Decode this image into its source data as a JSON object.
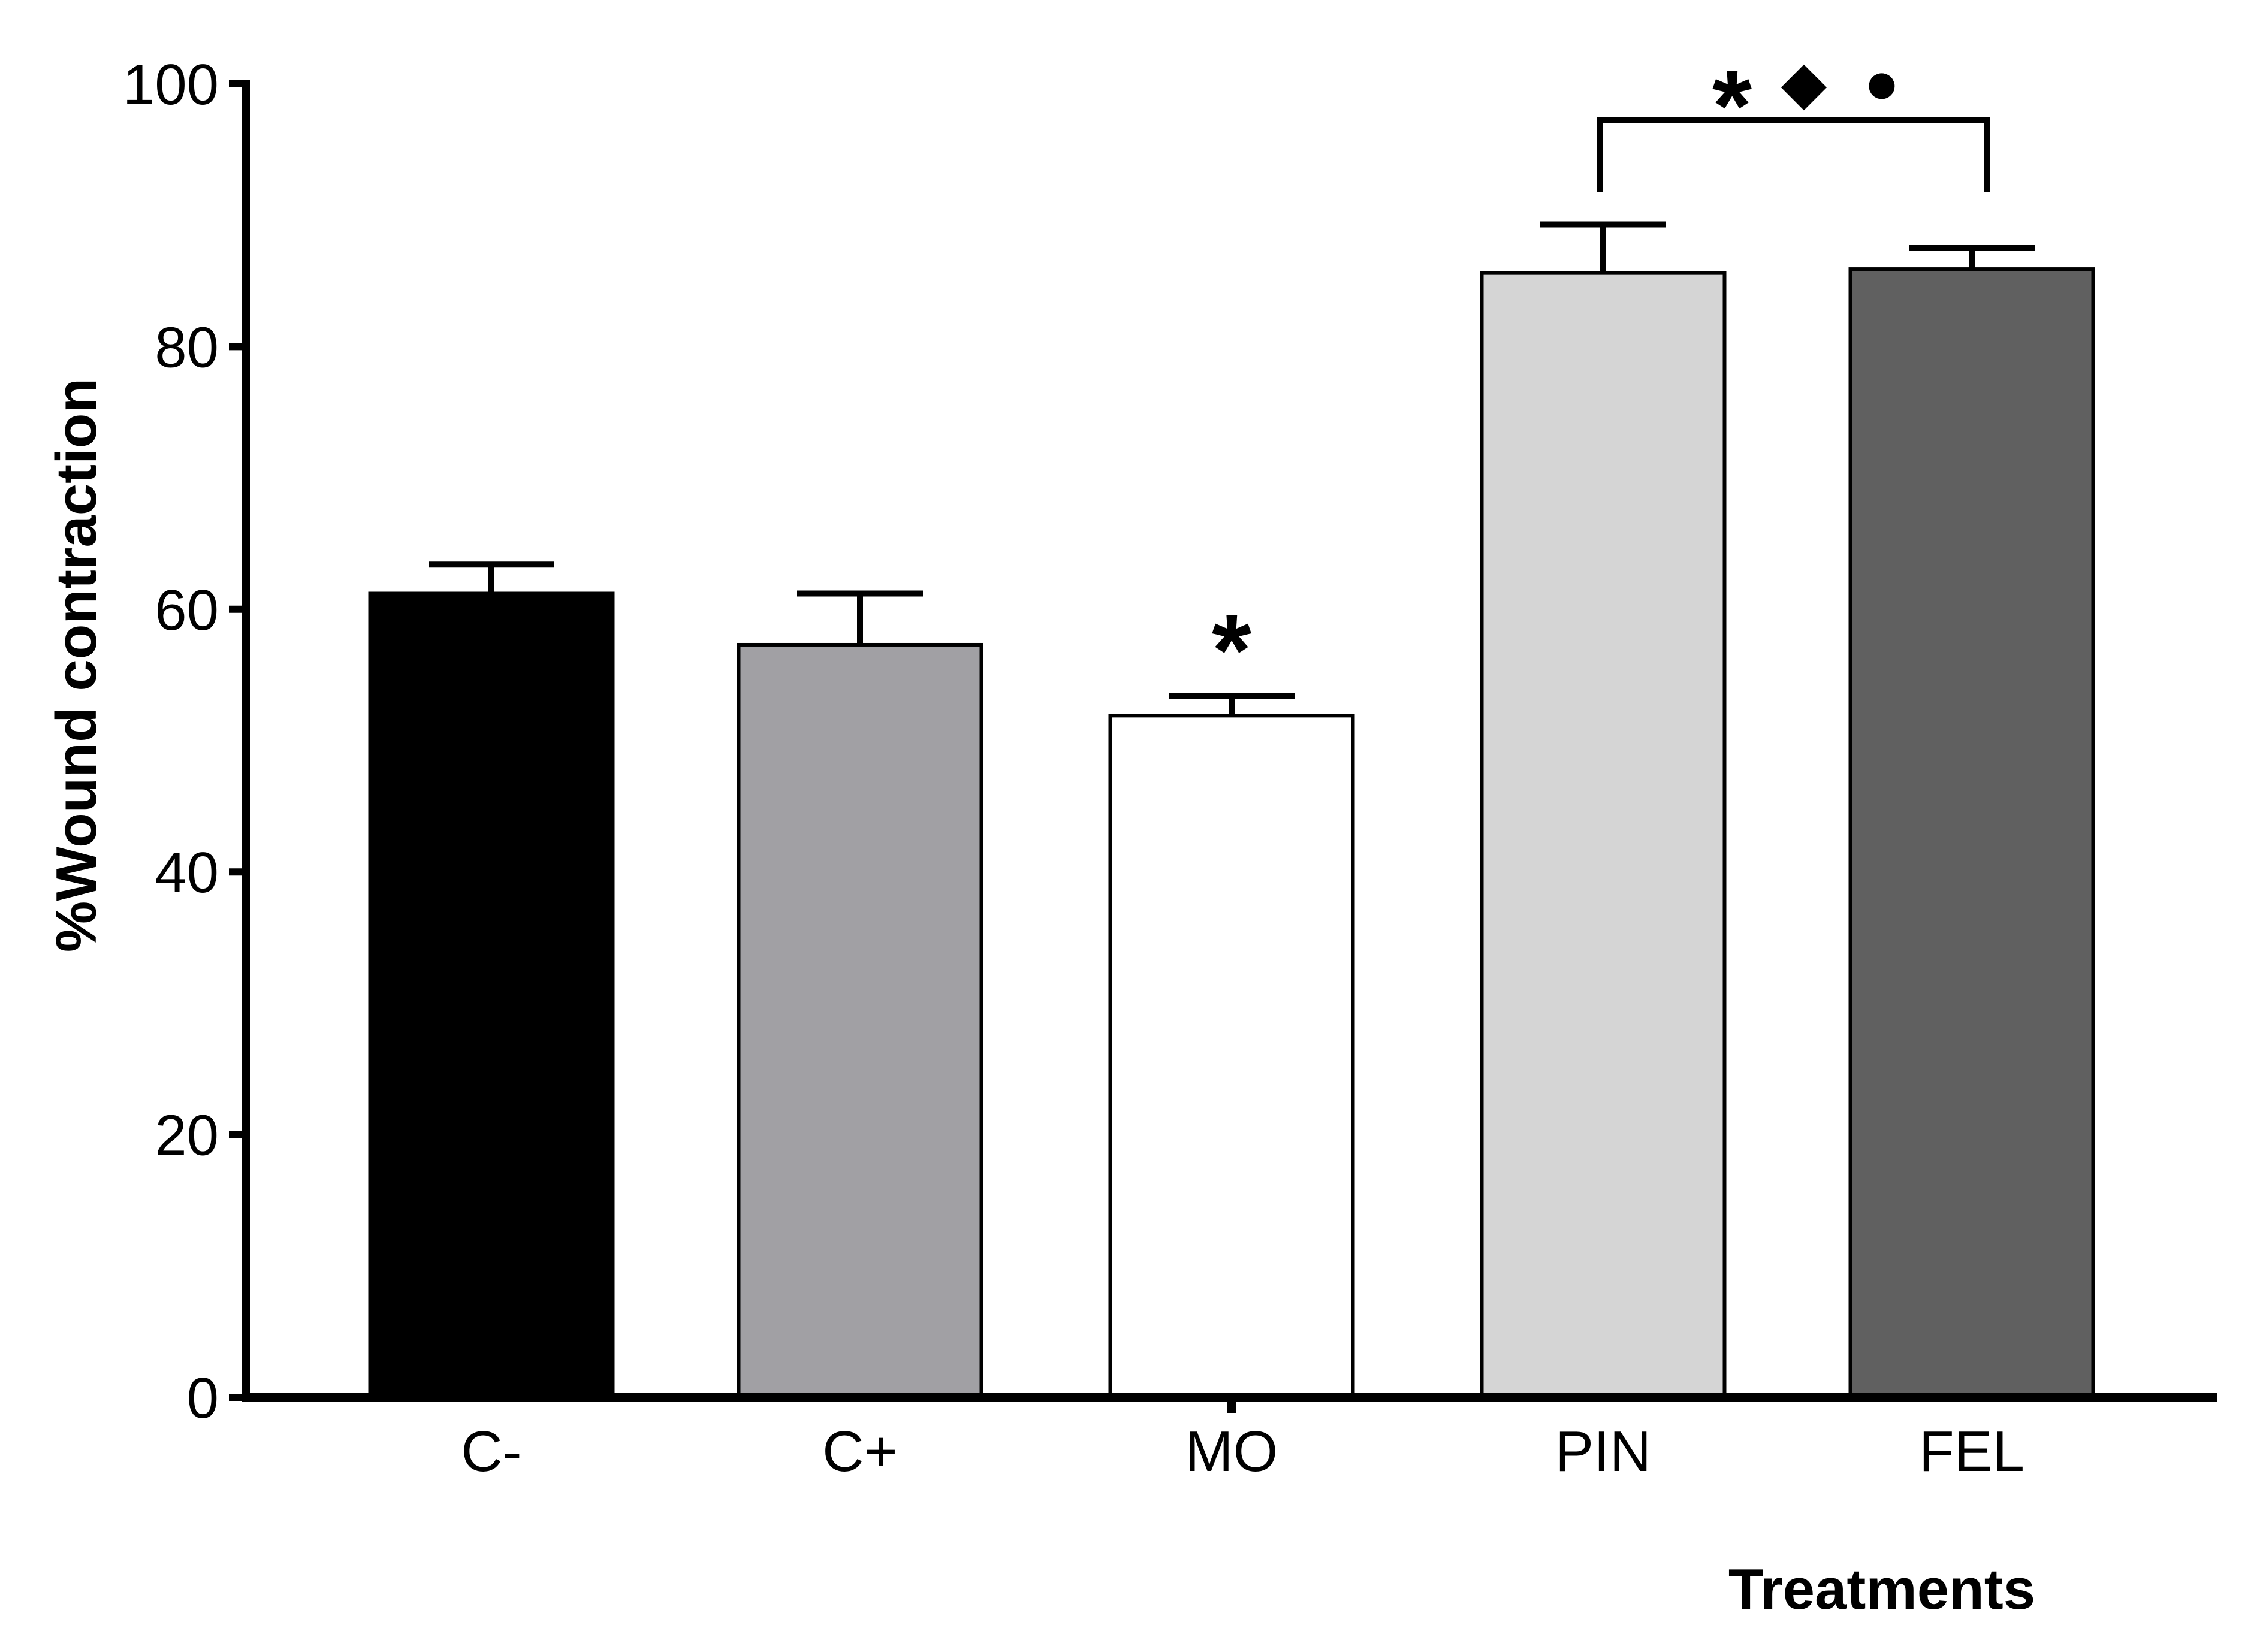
{
  "chart_data": {
    "type": "bar",
    "title": "",
    "xlabel": "Treatments",
    "ylabel": "%Wound contraction",
    "ylim": [
      0,
      100
    ],
    "yticks": [
      0,
      20,
      40,
      60,
      80,
      100
    ],
    "grid": false,
    "categories": [
      "C-",
      "C+",
      "MO",
      "PIN",
      "FEL"
    ],
    "values": [
      61.2,
      57.3,
      51.9,
      85.6,
      85.9
    ],
    "errors": [
      2.2,
      3.9,
      1.5,
      3.7,
      1.6
    ],
    "colors": [
      "#000000",
      "#a1a0a4",
      "#ffffff",
      "#d5d5d5",
      "#606060"
    ],
    "annotations": {
      "mo_marker": "*",
      "bracket_markers": [
        "*",
        "◆",
        "●"
      ],
      "bracket_from": "PIN",
      "bracket_to": "FEL"
    }
  }
}
